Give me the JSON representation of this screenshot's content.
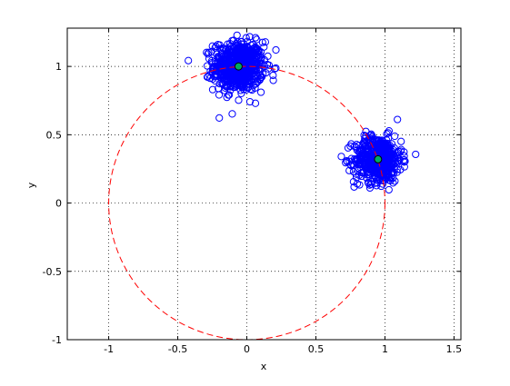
{
  "chart_data": {
    "type": "scatter",
    "title": "",
    "xlabel": "x",
    "ylabel": "y",
    "xlim": [
      -1.3,
      1.55
    ],
    "ylim": [
      -1,
      1.28
    ],
    "x_ticks": [
      -1,
      -0.5,
      0,
      0.5,
      1,
      1.5
    ],
    "x_tick_labels": [
      "-1",
      "-0.5",
      "0",
      "0.5",
      "1",
      "1.5"
    ],
    "y_ticks": [
      -1,
      -0.5,
      0,
      0.5,
      1
    ],
    "y_tick_labels": [
      "-1",
      "-0.5",
      "0",
      "0.5",
      "1"
    ],
    "grid": true,
    "grid_style": "dotted",
    "clusters": [
      {
        "center": [
          -0.06,
          1.0
        ],
        "spread": 0.09,
        "count": 700,
        "color": "#0000ff",
        "marker": "open-circle"
      },
      {
        "center": [
          0.95,
          0.32
        ],
        "spread": 0.085,
        "count": 550,
        "color": "#0000ff",
        "marker": "open-circle"
      }
    ],
    "centroids": [
      {
        "x": -0.06,
        "y": 1.0,
        "color": "#00aa66"
      },
      {
        "x": 0.95,
        "y": 0.32,
        "color": "#00aa66"
      }
    ],
    "unit_circle": {
      "center": [
        0,
        0
      ],
      "radius": 1,
      "color": "#ff0000",
      "style": "dashed"
    }
  }
}
